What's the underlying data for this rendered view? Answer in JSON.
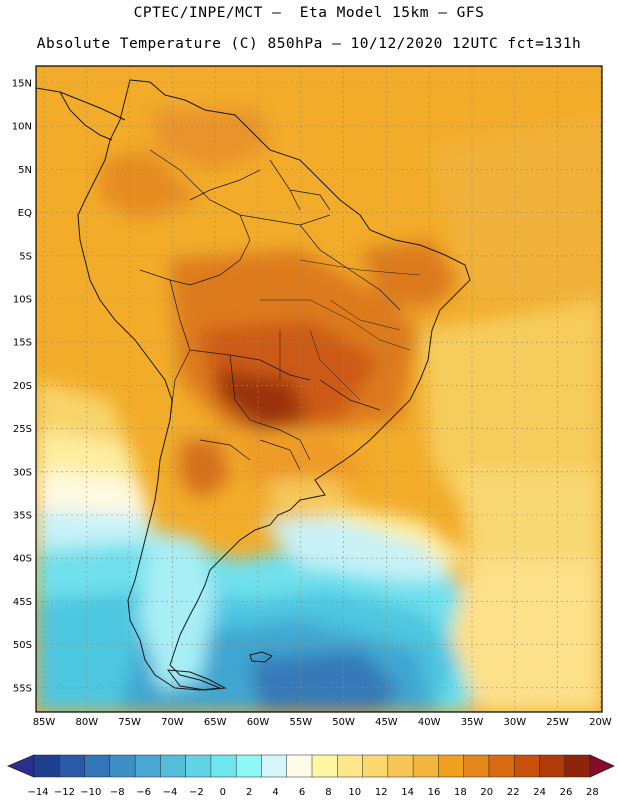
{
  "title_line1": "CPTEC/INPE/MCT –  Eta Model 15km – GFS",
  "title_line2": "Absolute Temperature (C) 850hPa – 10/12/2020 12UTC fct=131h",
  "lat_labels": [
    "15N",
    "10N",
    "5N",
    "EQ",
    "5S",
    "10S",
    "15S",
    "20S",
    "25S",
    "30S",
    "35S",
    "40S",
    "45S",
    "50S",
    "55S"
  ],
  "lon_labels": [
    "85W",
    "80W",
    "75W",
    "70W",
    "65W",
    "60W",
    "55W",
    "50W",
    "45W",
    "40W",
    "35W",
    "30W",
    "25W",
    "20W"
  ],
  "colorbar": {
    "tick_labels": [
      "−14",
      "−12",
      "−10",
      "−8",
      "−6",
      "−4",
      "−2",
      "0",
      "2",
      "4",
      "6",
      "8",
      "10",
      "12",
      "14",
      "16",
      "18",
      "20",
      "22",
      "24",
      "26",
      "28"
    ],
    "colors": [
      "#1f3f8f",
      "#2a5aa6",
      "#3474b8",
      "#3f8ec6",
      "#4aa6d2",
      "#56bcdc",
      "#62d2e6",
      "#6fe6ee",
      "#8ef8f8",
      "#d4f6fb",
      "#fffbe6",
      "#fef6a3",
      "#fde78a",
      "#fbd770",
      "#f8c656",
      "#f4b63e",
      "#efa01e",
      "#e5861a",
      "#da6a12",
      "#c9510d",
      "#b03a0a",
      "#8f2508",
      "#6c1506",
      "#8a0a2a"
    ],
    "under_color": "#2a2f8f",
    "over_color": "#8a0a2a"
  }
}
